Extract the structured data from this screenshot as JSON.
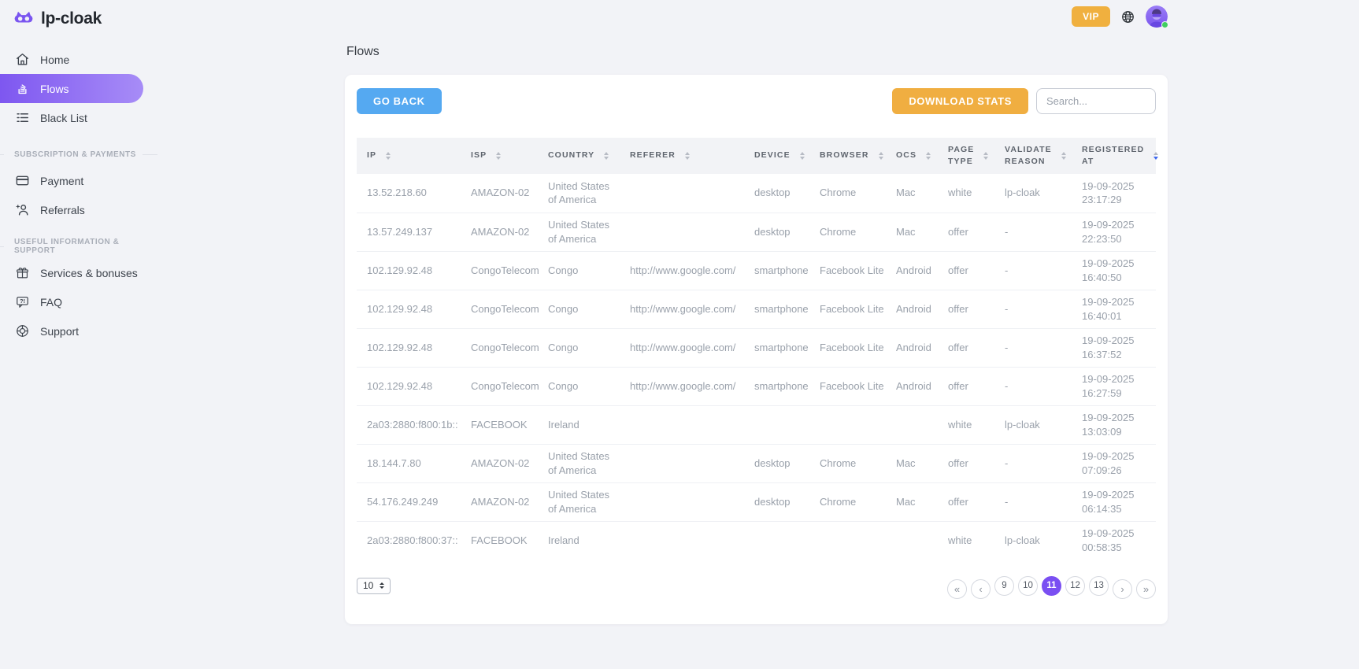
{
  "brand": {
    "name": "lp-cloak"
  },
  "topbar": {
    "vip_label": "VIP"
  },
  "sidebar": {
    "main_items": [
      {
        "label": "Home",
        "active": false
      },
      {
        "label": "Flows",
        "active": true
      },
      {
        "label": "Black List",
        "active": false
      }
    ],
    "sections": [
      {
        "label": "SUBSCRIPTION & PAYMENTS",
        "items": [
          {
            "label": "Payment"
          },
          {
            "label": "Referrals"
          }
        ]
      },
      {
        "label": "USEFUL INFORMATION & SUPPORT",
        "items": [
          {
            "label": "Services & bonuses"
          },
          {
            "label": "FAQ"
          },
          {
            "label": "Support"
          }
        ]
      }
    ]
  },
  "page": {
    "title": "Flows"
  },
  "toolbar": {
    "go_back_label": "GO BACK",
    "download_stats_label": "DOWNLOAD STATS",
    "search_placeholder": "Search..."
  },
  "table": {
    "columns": [
      "IP",
      "ISP",
      "COUNTRY",
      "REFERER",
      "DEVICE",
      "BROWSER",
      "OCS",
      "PAGE TYPE",
      "VALIDATE REASON",
      "REGISTERED AT"
    ],
    "sorted_column": "REGISTERED AT",
    "sort_direction": "desc",
    "rows": [
      {
        "ip": "13.52.218.60",
        "isp": "AMAZON-02",
        "country": "United States of America",
        "referer": "",
        "device": "desktop",
        "browser": "Chrome",
        "ocs": "Mac",
        "page_type": "white",
        "validate_reason": "lp-cloak",
        "registered_date": "19-09-2025",
        "registered_time": "23:17:29"
      },
      {
        "ip": "13.57.249.137",
        "isp": "AMAZON-02",
        "country": "United States of America",
        "referer": "",
        "device": "desktop",
        "browser": "Chrome",
        "ocs": "Mac",
        "page_type": "offer",
        "validate_reason": "-",
        "registered_date": "19-09-2025",
        "registered_time": "22:23:50"
      },
      {
        "ip": "102.129.92.48",
        "isp": "CongoTelecom",
        "country": "Congo",
        "referer": "http://www.google.com/",
        "device": "smartphone",
        "browser": "Facebook Lite",
        "ocs": "Android",
        "page_type": "offer",
        "validate_reason": "-",
        "registered_date": "19-09-2025",
        "registered_time": "16:40:50"
      },
      {
        "ip": "102.129.92.48",
        "isp": "CongoTelecom",
        "country": "Congo",
        "referer": "http://www.google.com/",
        "device": "smartphone",
        "browser": "Facebook Lite",
        "ocs": "Android",
        "page_type": "offer",
        "validate_reason": "-",
        "registered_date": "19-09-2025",
        "registered_time": "16:40:01"
      },
      {
        "ip": "102.129.92.48",
        "isp": "CongoTelecom",
        "country": "Congo",
        "referer": "http://www.google.com/",
        "device": "smartphone",
        "browser": "Facebook Lite",
        "ocs": "Android",
        "page_type": "offer",
        "validate_reason": "-",
        "registered_date": "19-09-2025",
        "registered_time": "16:37:52"
      },
      {
        "ip": "102.129.92.48",
        "isp": "CongoTelecom",
        "country": "Congo",
        "referer": "http://www.google.com/",
        "device": "smartphone",
        "browser": "Facebook Lite",
        "ocs": "Android",
        "page_type": "offer",
        "validate_reason": "-",
        "registered_date": "19-09-2025",
        "registered_time": "16:27:59"
      },
      {
        "ip": "2a03:2880:f800:1b::",
        "isp": "FACEBOOK",
        "country": "Ireland",
        "referer": "",
        "device": "",
        "browser": "",
        "ocs": "",
        "page_type": "white",
        "validate_reason": "lp-cloak",
        "registered_date": "19-09-2025",
        "registered_time": "13:03:09"
      },
      {
        "ip": "18.144.7.80",
        "isp": "AMAZON-02",
        "country": "United States of America",
        "referer": "",
        "device": "desktop",
        "browser": "Chrome",
        "ocs": "Mac",
        "page_type": "offer",
        "validate_reason": "-",
        "registered_date": "19-09-2025",
        "registered_time": "07:09:26"
      },
      {
        "ip": "54.176.249.249",
        "isp": "AMAZON-02",
        "country": "United States of America",
        "referer": "",
        "device": "desktop",
        "browser": "Chrome",
        "ocs": "Mac",
        "page_type": "offer",
        "validate_reason": "-",
        "registered_date": "19-09-2025",
        "registered_time": "06:14:35"
      },
      {
        "ip": "2a03:2880:f800:37::",
        "isp": "FACEBOOK",
        "country": "Ireland",
        "referer": "",
        "device": "",
        "browser": "",
        "ocs": "",
        "page_type": "white",
        "validate_reason": "lp-cloak",
        "registered_date": "19-09-2025",
        "registered_time": "00:58:35"
      }
    ]
  },
  "pagination": {
    "page_size": "10",
    "first_label": "«",
    "prev_label": "‹",
    "pages": [
      "9",
      "10",
      "11",
      "12",
      "13"
    ],
    "active_page": "11",
    "next_label": "›",
    "last_label": "»"
  },
  "colors": {
    "background": "#f2f3f7",
    "accent_purple_start": "#7e57f0",
    "accent_purple_end": "#a78cf7",
    "active_page_purple": "#7a4ff2",
    "orange": "#f0ae41",
    "blue": "#55a9f1",
    "sort_active_blue": "#3e68f0",
    "online_green": "#3fcf5f"
  }
}
